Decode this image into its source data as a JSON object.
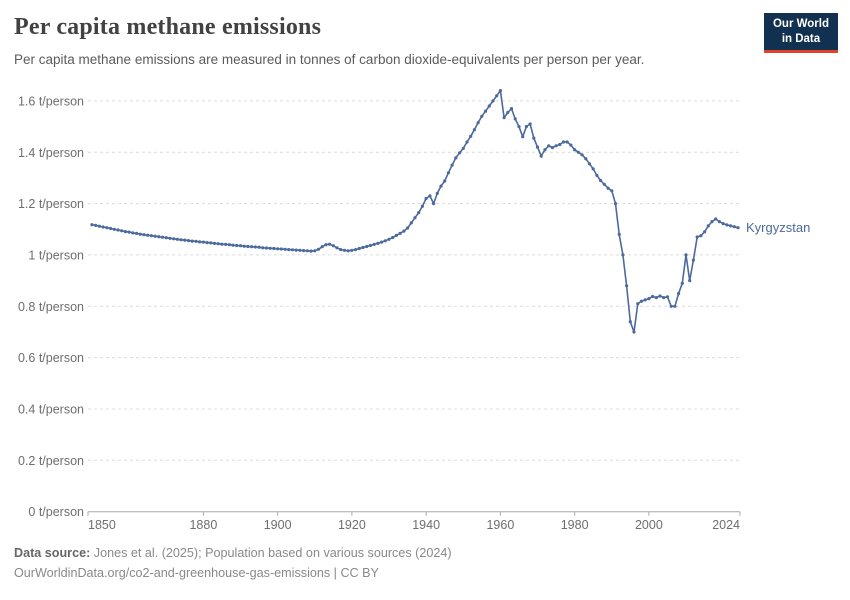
{
  "header": {
    "title": "Per capita methane emissions",
    "subtitle": "Per capita methane emissions are measured in tonnes of carbon dioxide-equivalents per person per year."
  },
  "logo": {
    "line1": "Our World",
    "line2": "in Data",
    "bg_color": "#12304F",
    "accent_color": "#E0422E"
  },
  "chart_data": {
    "type": "line",
    "title": "Per capita methane emissions",
    "unit": "t/person",
    "xlim": [
      1850,
      2024
    ],
    "ylim": [
      0,
      1.6
    ],
    "grid": "horizontal-dashed",
    "grid_color": "#dcdcdc",
    "axis_color": "#a8a8a8",
    "legend": "end-of-line-label",
    "x_ticks": [
      1850,
      1880,
      1900,
      1920,
      1940,
      1960,
      1980,
      2000,
      2024
    ],
    "y_ticks": [
      0,
      0.2,
      0.4,
      0.6,
      0.8,
      1,
      1.2,
      1.4,
      1.6
    ],
    "y_tick_labels": [
      "0 t/person",
      "0.2 t/person",
      "0.4 t/person",
      "0.6 t/person",
      "0.8 t/person",
      "1 t/person",
      "1.2 t/person",
      "1.4 t/person",
      "1.6 t/person"
    ],
    "series": [
      {
        "name": "Kyrgyzstan",
        "color": "#4C6A9C",
        "x_start": 1850,
        "x_step": 1,
        "values": [
          1.118,
          1.115,
          1.112,
          1.109,
          1.106,
          1.103,
          1.1,
          1.097,
          1.094,
          1.091,
          1.089,
          1.086,
          1.084,
          1.081,
          1.079,
          1.077,
          1.075,
          1.073,
          1.071,
          1.069,
          1.067,
          1.065,
          1.063,
          1.061,
          1.059,
          1.058,
          1.056,
          1.054,
          1.053,
          1.051,
          1.05,
          1.048,
          1.047,
          1.045,
          1.044,
          1.042,
          1.041,
          1.04,
          1.038,
          1.037,
          1.036,
          1.034,
          1.033,
          1.032,
          1.031,
          1.03,
          1.028,
          1.027,
          1.026,
          1.025,
          1.024,
          1.023,
          1.022,
          1.021,
          1.02,
          1.019,
          1.018,
          1.017,
          1.016,
          1.015,
          1.016,
          1.022,
          1.032,
          1.04,
          1.042,
          1.036,
          1.028,
          1.021,
          1.018,
          1.016,
          1.018,
          1.021,
          1.025,
          1.029,
          1.033,
          1.037,
          1.041,
          1.045,
          1.05,
          1.055,
          1.061,
          1.068,
          1.076,
          1.084,
          1.093,
          1.105,
          1.125,
          1.145,
          1.165,
          1.19,
          1.22,
          1.23,
          1.2,
          1.24,
          1.268,
          1.288,
          1.32,
          1.35,
          1.378,
          1.398,
          1.415,
          1.44,
          1.462,
          1.488,
          1.515,
          1.54,
          1.56,
          1.58,
          1.6,
          1.62,
          1.64,
          1.535,
          1.555,
          1.57,
          1.53,
          1.5,
          1.46,
          1.5,
          1.51,
          1.455,
          1.42,
          1.385,
          1.41,
          1.425,
          1.418,
          1.425,
          1.43,
          1.44,
          1.44,
          1.428,
          1.41,
          1.4,
          1.39,
          1.375,
          1.355,
          1.335,
          1.31,
          1.29,
          1.275,
          1.26,
          1.25,
          1.2,
          1.08,
          1.0,
          0.88,
          0.74,
          0.7,
          0.81,
          0.82,
          0.825,
          0.83,
          0.838,
          0.834,
          0.84,
          0.834,
          0.837,
          0.8,
          0.8,
          0.85,
          0.89,
          1.0,
          0.9,
          0.98,
          1.07,
          1.075,
          1.09,
          1.113,
          1.13,
          1.14,
          1.13,
          1.122,
          1.117,
          1.113,
          1.11,
          1.106
        ]
      }
    ]
  },
  "footer": {
    "source_label": "Data source:",
    "source_text": " Jones et al. (2025); Population based on various sources (2024)",
    "url_text": "OurWorldinData.org/co2-and-greenhouse-gas-emissions",
    "license_text": " | CC BY"
  }
}
